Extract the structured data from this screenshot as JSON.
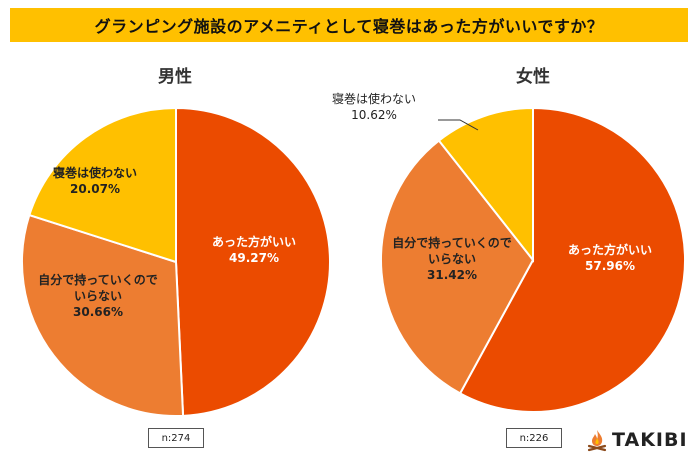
{
  "title": "グランピング施設のアメニティとして寝巻はあった方がいいですか？",
  "brand": {
    "name": "TAKIBI",
    "icon": "campfire-icon"
  },
  "colors": {
    "title_bg": "#ffc000",
    "slice1": "#eb4b00",
    "slice2": "#ed7d31",
    "slice3": "#ffc000"
  },
  "chart_data": [
    {
      "type": "pie",
      "title": "男性",
      "n_label": "n:274",
      "slices": [
        {
          "label_lines": [
            "あった方がいい"
          ],
          "value": 49.27,
          "value_label": "49.27%"
        },
        {
          "label_lines": [
            "自分で持っていくので",
            "いらない"
          ],
          "value": 30.66,
          "value_label": "30.66%"
        },
        {
          "label_lines": [
            "寝巻は使わない"
          ],
          "value": 20.07,
          "value_label": "20.07%"
        }
      ]
    },
    {
      "type": "pie",
      "title": "女性",
      "n_label": "n:226",
      "slices": [
        {
          "label_lines": [
            "あった方がいい"
          ],
          "value": 57.96,
          "value_label": "57.96%"
        },
        {
          "label_lines": [
            "自分で持っていくので",
            "いらない"
          ],
          "value": 31.42,
          "value_label": "31.42%"
        },
        {
          "label_lines": [
            "寝巻は使わない"
          ],
          "value": 10.62,
          "value_label": "10.62%"
        }
      ]
    }
  ]
}
